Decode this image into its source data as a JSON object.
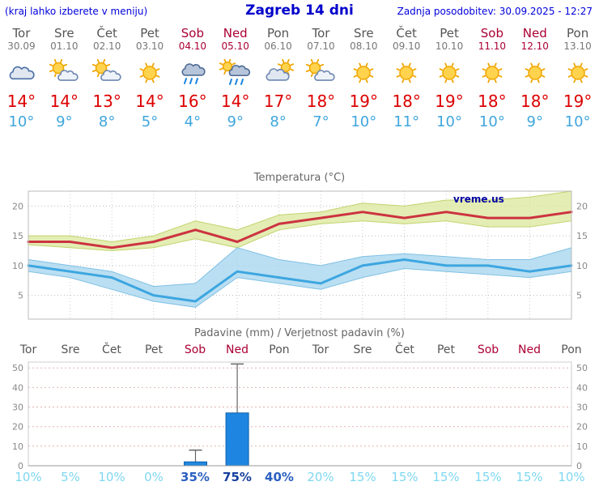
{
  "header": {
    "left_note": "(kraj lahko izberete v meniju)",
    "title": "Zagreb 14 dni",
    "updated": "Zadnja posodobitev: 30.09.2025 - 12:27"
  },
  "colors": {
    "header_blue": "#0000cc",
    "weekend_red": "#aa0033",
    "tmax_red": "#dd0000",
    "tmin_blue": "#3fa6dd",
    "bar_blue": "#1e86e0",
    "prob_low_cyan": "#7ed7f0",
    "prob_high_blue": "#2b5fc0"
  },
  "days": [
    {
      "name": "Tor",
      "date": "30.09",
      "icon": "cloudy",
      "tmax": "14°",
      "tmin": "10°",
      "weekend": false
    },
    {
      "name": "Sre",
      "date": "01.10",
      "icon": "partly-cloudy",
      "tmax": "14°",
      "tmin": "9°",
      "weekend": false
    },
    {
      "name": "Čet",
      "date": "02.10",
      "icon": "partly-cloudy",
      "tmax": "13°",
      "tmin": "8°",
      "weekend": false
    },
    {
      "name": "Pet",
      "date": "03.10",
      "icon": "sunny",
      "tmax": "14°",
      "tmin": "5°",
      "weekend": false
    },
    {
      "name": "Sob",
      "date": "04.10",
      "icon": "rain",
      "tmax": "16°",
      "tmin": "4°",
      "weekend": true
    },
    {
      "name": "Ned",
      "date": "05.10",
      "icon": "sun-showers",
      "tmax": "14°",
      "tmin": "9°",
      "weekend": true
    },
    {
      "name": "Pon",
      "date": "06.10",
      "icon": "mostly-cloudy",
      "tmax": "17°",
      "tmin": "8°",
      "weekend": false
    },
    {
      "name": "Tor",
      "date": "07.10",
      "icon": "partly-cloudy",
      "tmax": "18°",
      "tmin": "7°",
      "weekend": false
    },
    {
      "name": "Sre",
      "date": "08.10",
      "icon": "sunny",
      "tmax": "19°",
      "tmin": "10°",
      "weekend": false
    },
    {
      "name": "Čet",
      "date": "09.10",
      "icon": "sunny",
      "tmax": "18°",
      "tmin": "11°",
      "weekend": false
    },
    {
      "name": "Pet",
      "date": "10.10",
      "icon": "sunny",
      "tmax": "19°",
      "tmin": "10°",
      "weekend": false
    },
    {
      "name": "Sob",
      "date": "11.10",
      "icon": "sunny",
      "tmax": "18°",
      "tmin": "10°",
      "weekend": true
    },
    {
      "name": "Ned",
      "date": "12.10",
      "icon": "sunny",
      "tmax": "18°",
      "tmin": "9°",
      "weekend": true
    },
    {
      "name": "Pon",
      "date": "13.10",
      "icon": "sunny",
      "tmax": "19°",
      "tmin": "10°",
      "weekend": false
    }
  ],
  "chart_data": [
    {
      "type": "line",
      "title": "Temperatura (°C)",
      "categories": [
        "Tor",
        "Sre",
        "Čet",
        "Pet",
        "Sob",
        "Ned",
        "Pon",
        "Tor",
        "Sre",
        "Čet",
        "Pet",
        "Sob",
        "Ned",
        "Pon"
      ],
      "series": [
        {
          "name": "max",
          "color": "#cc3340",
          "values": [
            14,
            14,
            13,
            14,
            16,
            14,
            17,
            18,
            19,
            18,
            19,
            18,
            18,
            19
          ]
        },
        {
          "name": "min",
          "color": "#3da6e0",
          "values": [
            10,
            9,
            8,
            5,
            4,
            9,
            8,
            7,
            10,
            11,
            10,
            10,
            9,
            10
          ]
        }
      ],
      "bands": [
        {
          "name": "max-range",
          "color": "#dde9a0",
          "edge": "#c2d470",
          "upper": [
            15,
            15,
            14,
            15,
            17.5,
            16,
            18.5,
            19,
            20.5,
            20,
            21,
            21,
            21.5,
            22.5
          ],
          "lower": [
            13.5,
            13,
            12.5,
            13,
            14.5,
            13,
            16,
            17,
            17.5,
            17,
            17.5,
            16.5,
            16.5,
            17.5
          ]
        },
        {
          "name": "min-range",
          "color": "#a9d7ef",
          "edge": "#7fc0e4",
          "upper": [
            11,
            10,
            9,
            6.5,
            7,
            13,
            11,
            10,
            11.5,
            12,
            11.5,
            11,
            11,
            13
          ],
          "lower": [
            9,
            8,
            6,
            4,
            3,
            8,
            7,
            6,
            8,
            9.5,
            9,
            8.5,
            8,
            9
          ]
        }
      ],
      "yticks": [
        5,
        10,
        15,
        20
      ],
      "ylim": [
        1,
        22.5
      ],
      "grid": true,
      "legend": "none",
      "watermark": "vreme.us"
    },
    {
      "type": "bar",
      "title": "Padavine (mm) / Verjetnost padavin (%)",
      "categories": [
        "Tor",
        "Sre",
        "Čet",
        "Pet",
        "Sob",
        "Ned",
        "Pon",
        "Tor",
        "Sre",
        "Čet",
        "Pet",
        "Sob",
        "Ned",
        "Pon"
      ],
      "weekend_flags": [
        false,
        false,
        false,
        false,
        true,
        true,
        false,
        false,
        false,
        false,
        false,
        true,
        true,
        false
      ],
      "values": [
        0,
        0,
        0,
        0,
        2,
        27,
        0,
        0,
        0,
        0,
        0,
        0,
        0,
        0
      ],
      "whisker_max": [
        0,
        0,
        0,
        0,
        8,
        52,
        0,
        0,
        0,
        0,
        0,
        0,
        0,
        0
      ],
      "probabilities": [
        {
          "label": "10%",
          "color": "#7ed7f0",
          "bold": false
        },
        {
          "label": "5%",
          "color": "#7ed7f0",
          "bold": false
        },
        {
          "label": "10%",
          "color": "#7ed7f0",
          "bold": false
        },
        {
          "label": "0%",
          "color": "#7ed7f0",
          "bold": false
        },
        {
          "label": "35%",
          "color": "#2b5fc0",
          "bold": true
        },
        {
          "label": "75%",
          "color": "#173f9e",
          "bold": true
        },
        {
          "label": "40%",
          "color": "#2b5fc0",
          "bold": true
        },
        {
          "label": "20%",
          "color": "#7ed7f0",
          "bold": false
        },
        {
          "label": "15%",
          "color": "#7ed7f0",
          "bold": false
        },
        {
          "label": "15%",
          "color": "#7ed7f0",
          "bold": false
        },
        {
          "label": "15%",
          "color": "#7ed7f0",
          "bold": false
        },
        {
          "label": "15%",
          "color": "#7ed7f0",
          "bold": false
        },
        {
          "label": "15%",
          "color": "#7ed7f0",
          "bold": false
        },
        {
          "label": "10%",
          "color": "#7ed7f0",
          "bold": false
        }
      ],
      "yticks": [
        0,
        10,
        20,
        30,
        40,
        50
      ],
      "ylim": [
        0,
        53
      ],
      "bar_color": "#1e86e0",
      "bar_edge": "#0f5faa",
      "grid": true,
      "legend": "none"
    }
  ]
}
